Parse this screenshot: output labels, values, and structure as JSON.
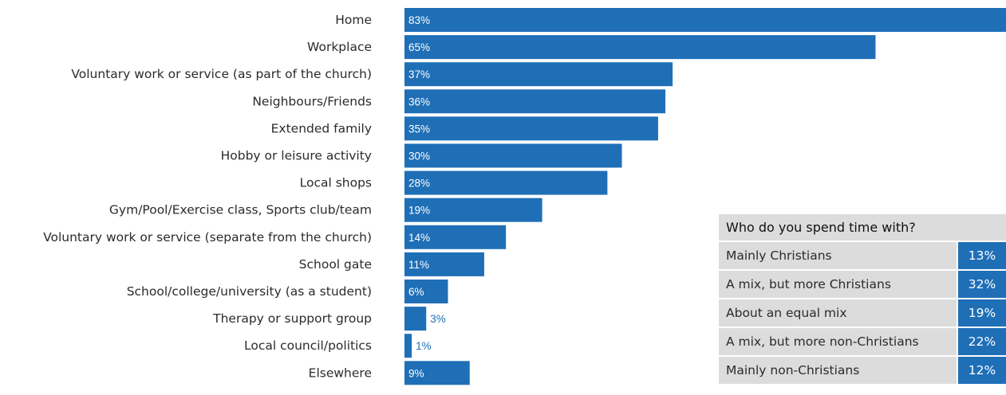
{
  "colors": {
    "bar": "#1f6fb7",
    "table_bg": "#dcdcdc"
  },
  "chart_data": {
    "type": "bar",
    "orientation": "horizontal",
    "categories": [
      "Home",
      "Workplace",
      "Voluntary work or service (as part of the church)",
      "Neighbours/Friends",
      "Extended family",
      "Hobby or leisure activity",
      "Local shops",
      "Gym/Pool/Exercise class, Sports club/team",
      "Voluntary work or service (separate from the church)",
      "School gate",
      "School/college/university (as a student)",
      "Therapy or support group",
      "Local council/politics",
      "Elsewhere"
    ],
    "values": [
      83,
      65,
      37,
      36,
      35,
      30,
      28,
      19,
      14,
      11,
      6,
      3,
      1,
      9
    ],
    "value_labels": [
      "83%",
      "65%",
      "37%",
      "36%",
      "35%",
      "30%",
      "28%",
      "19%",
      "14%",
      "11%",
      "6%",
      "3%",
      "1%",
      "9%"
    ],
    "unit": "%",
    "xlim": [
      0,
      83
    ],
    "title": "",
    "xlabel": "",
    "ylabel": "",
    "grid": false,
    "legend": "none"
  },
  "table": {
    "title": "Who do you spend time with?",
    "rows": [
      {
        "label": "Mainly Christians",
        "value": "13%"
      },
      {
        "label": "A mix, but more Christians",
        "value": "32%"
      },
      {
        "label": "About an equal mix",
        "value": "19%"
      },
      {
        "label": "A mix, but more non-Christians",
        "value": "22%"
      },
      {
        "label": "Mainly non-Christians",
        "value": "12%"
      }
    ]
  }
}
